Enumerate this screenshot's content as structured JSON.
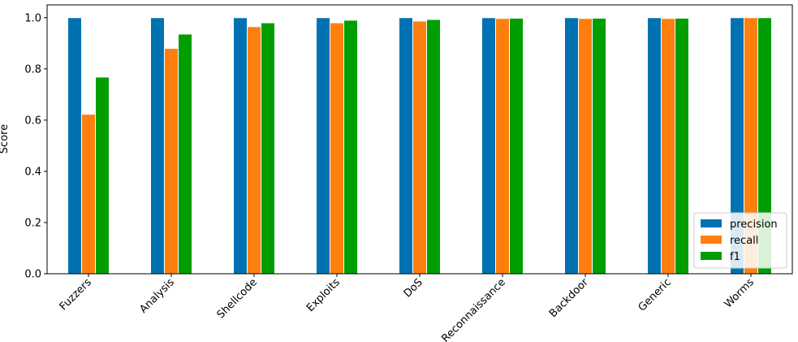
{
  "chart_data": {
    "type": "bar",
    "title": "",
    "xlabel": "",
    "ylabel": "Score",
    "ylim": [
      0,
      1.05
    ],
    "yticks": [
      0.0,
      0.2,
      0.4,
      0.6,
      0.8,
      1.0
    ],
    "ytick_labels": [
      "0.0",
      "0.2",
      "0.4",
      "0.6",
      "0.8",
      "1.0"
    ],
    "categories": [
      "Fuzzers",
      "Analysis",
      "Shellcode",
      "Exploits",
      "DoS",
      "Reconnaissance",
      "Backdoor",
      "Generic",
      "Worms"
    ],
    "series": [
      {
        "name": "precision",
        "color": "#0072b2",
        "values": [
          1.0,
          1.0,
          1.0,
          1.0,
          1.0,
          1.0,
          1.0,
          1.0,
          1.0
        ]
      },
      {
        "name": "recall",
        "color": "#ff7f0e",
        "values": [
          0.623,
          0.88,
          0.965,
          0.98,
          0.987,
          0.997,
          0.997,
          0.997,
          1.0
        ]
      },
      {
        "name": "f1",
        "color": "#009e00",
        "values": [
          0.768,
          0.936,
          0.98,
          0.99,
          0.993,
          0.998,
          0.998,
          0.998,
          1.0
        ]
      }
    ],
    "grid": false,
    "legend_position": "lower-right"
  }
}
